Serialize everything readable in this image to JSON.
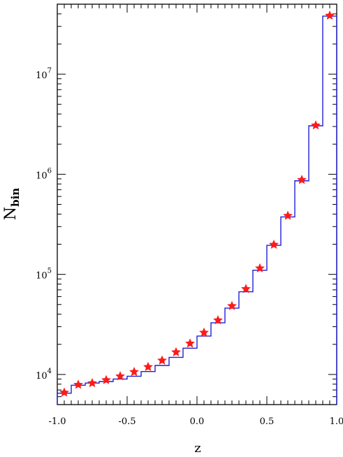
{
  "chart_data": {
    "type": "line",
    "title": "",
    "xlabel": "z",
    "ylabel": "N",
    "ylabel_subscript": "bin",
    "x_scale": "linear",
    "y_scale": "log",
    "xlim": [
      -1.0,
      1.0
    ],
    "ylim": [
      5000,
      50000000
    ],
    "x_tick_labels": [
      "-1.0",
      "-0.5",
      "0.0",
      "0.5",
      "1.0"
    ],
    "x_tick_values": [
      -1.0,
      -0.5,
      0.0,
      0.5,
      1.0
    ],
    "y_tick_labels": [
      {
        "base": "10",
        "exp": "4",
        "value": 10000
      },
      {
        "base": "10",
        "exp": "5",
        "value": 100000
      },
      {
        "base": "10",
        "exp": "6",
        "value": 1000000
      },
      {
        "base": "10",
        "exp": "7",
        "value": 10000000
      }
    ],
    "grid": false,
    "colors": {
      "histogram": "#1f1fd6",
      "points": "#ff1a1a",
      "axes": "#000000"
    },
    "series": [
      {
        "style": "step",
        "bin_edges": [
          -1.0,
          -0.9,
          -0.8,
          -0.7,
          -0.6,
          -0.5,
          -0.4,
          -0.3,
          -0.2,
          -0.1,
          0.0,
          0.1,
          0.2,
          0.3,
          0.4,
          0.5,
          0.6,
          0.7,
          0.8,
          0.9,
          1.0
        ],
        "values": [
          6500,
          7800,
          8200,
          8500,
          9000,
          9600,
          10700,
          12300,
          14800,
          18300,
          24200,
          32800,
          46000,
          67000,
          110000,
          195000,
          375000,
          860000,
          3050000,
          38000000
        ]
      },
      {
        "style": "points",
        "x": [
          -0.95,
          -0.85,
          -0.75,
          -0.65,
          -0.55,
          -0.45,
          -0.35,
          -0.25,
          -0.15,
          -0.05,
          0.05,
          0.15,
          0.25,
          0.35,
          0.45,
          0.55,
          0.65,
          0.75,
          0.85,
          0.95
        ],
        "y": [
          6600,
          7900,
          8200,
          8800,
          9600,
          10600,
          11900,
          13800,
          16700,
          20400,
          26200,
          34800,
          48300,
          71500,
          115000,
          198000,
          385000,
          880000,
          3080000,
          38500000
        ]
      }
    ]
  }
}
